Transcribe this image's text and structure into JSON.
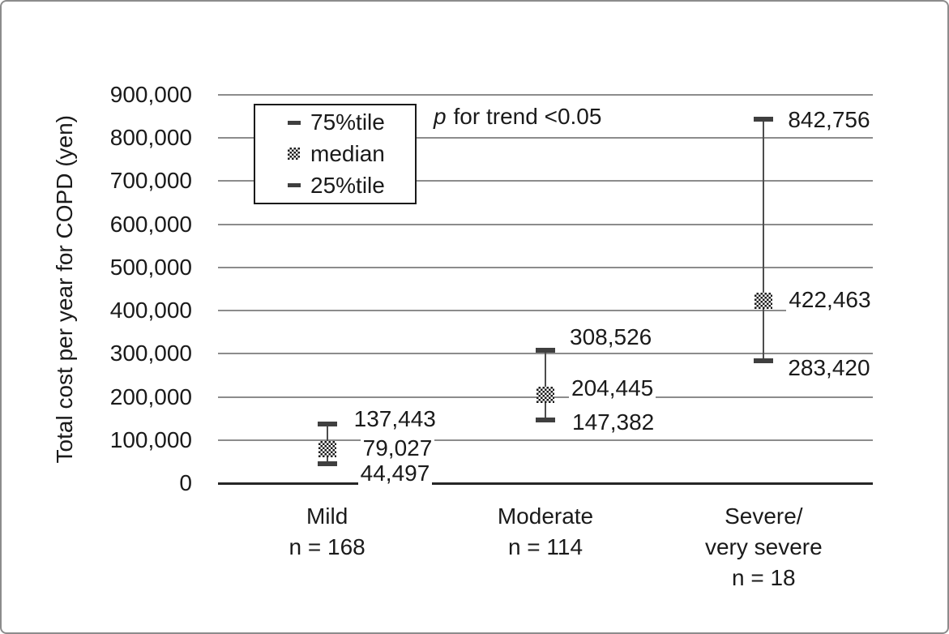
{
  "chart_data": {
    "type": "scatter",
    "subtype": "median-with-25-75-percentile-error-bars",
    "title": "",
    "xlabel": "",
    "ylabel": "Total cost per year for COPD (yen)",
    "ylim": [
      0,
      900000
    ],
    "ytick_step": 100000,
    "ytick_labels": [
      "0",
      "100,000",
      "200,000",
      "300,000",
      "400,000",
      "500,000",
      "600,000",
      "700,000",
      "800,000",
      "900,000"
    ],
    "grid": true,
    "legend_position": "top-left-inside",
    "categories": [
      "Mild",
      "Moderate",
      "Severe/very severe"
    ],
    "category_label_lines": [
      [
        "Mild",
        "n = 168"
      ],
      [
        "Moderate",
        "n = 114"
      ],
      [
        "Severe/",
        "very severe",
        "n = 18"
      ]
    ],
    "series": [
      {
        "name": "Mild",
        "n": 168,
        "p25": 44497,
        "median": 79027,
        "p75": 137443,
        "point_labels": {
          "p75": "137,443",
          "median": "79,027",
          "p25": "44,497"
        }
      },
      {
        "name": "Moderate",
        "n": 114,
        "p25": 147382,
        "median": 204445,
        "p75": 308526,
        "point_labels": {
          "p75": "308,526",
          "median": "204,445",
          "p25": "147,382"
        }
      },
      {
        "name": "Severe/very severe",
        "n": 18,
        "p25": 283420,
        "median": 422463,
        "p75": 842756,
        "point_labels": {
          "p75": "842,756",
          "median": "422,463",
          "p25": "283,420"
        }
      }
    ],
    "legend_items": [
      {
        "marker": "dash",
        "label": "75%tile"
      },
      {
        "marker": "checker",
        "label": "median"
      },
      {
        "marker": "dash",
        "label": "25%tile"
      }
    ],
    "annotation": {
      "prefix": "p",
      "rest": "for trend <0.05"
    }
  },
  "colors": {
    "text": "#1a1a1a",
    "gridline": "#8c8c8c",
    "axis": "#262626",
    "whisker": "#4d4d4d",
    "cap": "#3f3f3f",
    "checker_dark": "#1a1a1a",
    "background": "#ffffff",
    "figure_border": "#8c8c8c",
    "legend_border": "#1a1a1a"
  }
}
